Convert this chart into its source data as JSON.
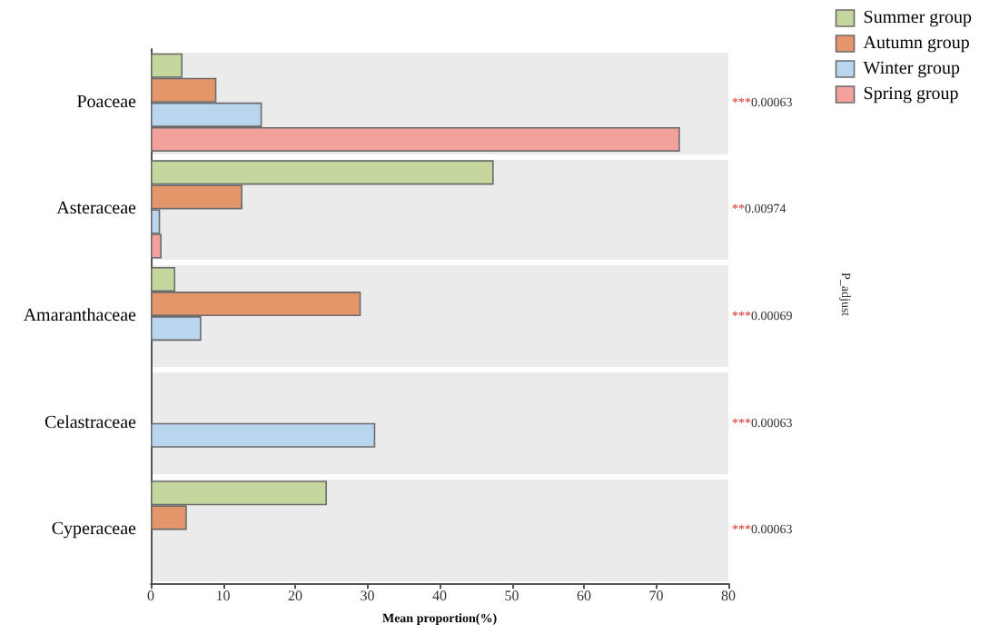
{
  "chart_data": {
    "type": "bar",
    "orientation": "horizontal",
    "xlabel": "Mean proportion(%)",
    "categories": [
      "Poaceae",
      "Asteraceae",
      "Amaranthaceae",
      "Celastraceae",
      "Cyperaceae"
    ],
    "series": [
      {
        "name": "Summer group",
        "color": "#c5d79f",
        "values": [
          4.4,
          47.5,
          3.4,
          null,
          24.4
        ]
      },
      {
        "name": "Autumn group",
        "color": "#e4956a",
        "values": [
          9.1,
          12.7,
          29.1,
          null,
          5.0
        ]
      },
      {
        "name": "Winter group",
        "color": "#b9d6ee",
        "values": [
          15.4,
          1.3,
          7.0,
          31.1,
          null
        ]
      },
      {
        "name": "Spring group",
        "color": "#f2a19c",
        "values": [
          73.3,
          1.5,
          null,
          null,
          null
        ]
      }
    ],
    "xlim": [
      0,
      80
    ],
    "xticks": [
      0,
      10,
      20,
      30,
      40,
      50,
      60,
      70,
      80
    ],
    "annotations": [
      "***0.00063",
      "**0.00974",
      "***0.00069",
      "***0.00063",
      "***0.00063",
      "P_adjust"
    ],
    "legend": "top right",
    "grid": false
  }
}
